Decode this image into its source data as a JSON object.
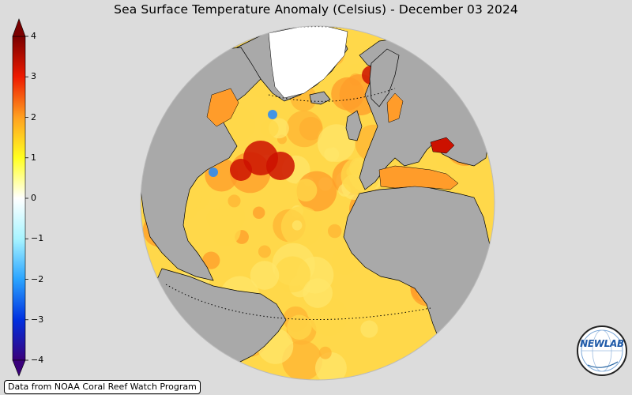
{
  "title": "Sea Surface Temperature Anomaly (Celsius) - December 03 2024",
  "colorbar": {
    "min": -4,
    "max": 4,
    "ticks": [
      {
        "value": 4,
        "label": "4"
      },
      {
        "value": 3,
        "label": "3"
      },
      {
        "value": 2,
        "label": "2"
      },
      {
        "value": 1,
        "label": "1"
      },
      {
        "value": 0,
        "label": "0"
      },
      {
        "value": -1,
        "label": "−1"
      },
      {
        "value": -2,
        "label": "−2"
      },
      {
        "value": -3,
        "label": "−3"
      },
      {
        "value": -4,
        "label": "−4"
      }
    ],
    "colors": {
      "neg4": "#3a007a",
      "neg3": "#0030e0",
      "neg2": "#2aa4ff",
      "neg1": "#a8f4ff",
      "zero": "#ffffff",
      "pos1": "#ffff20",
      "pos2": "#ffa020",
      "pos3": "#ee1a00",
      "pos4": "#7a0000"
    }
  },
  "map": {
    "land_color": "#a9a9a9",
    "ocean_colors": [
      "#ffd84a",
      "#ffb433",
      "#ff9c2a",
      "#ffe66a"
    ],
    "hot_color": "#cc1100",
    "cold_color": "#2288ff"
  },
  "source_note": "Data from NOAA Coral Reef Watch Program",
  "logo": {
    "text": "NEWLAB",
    "icon": "globe-logo-icon"
  }
}
